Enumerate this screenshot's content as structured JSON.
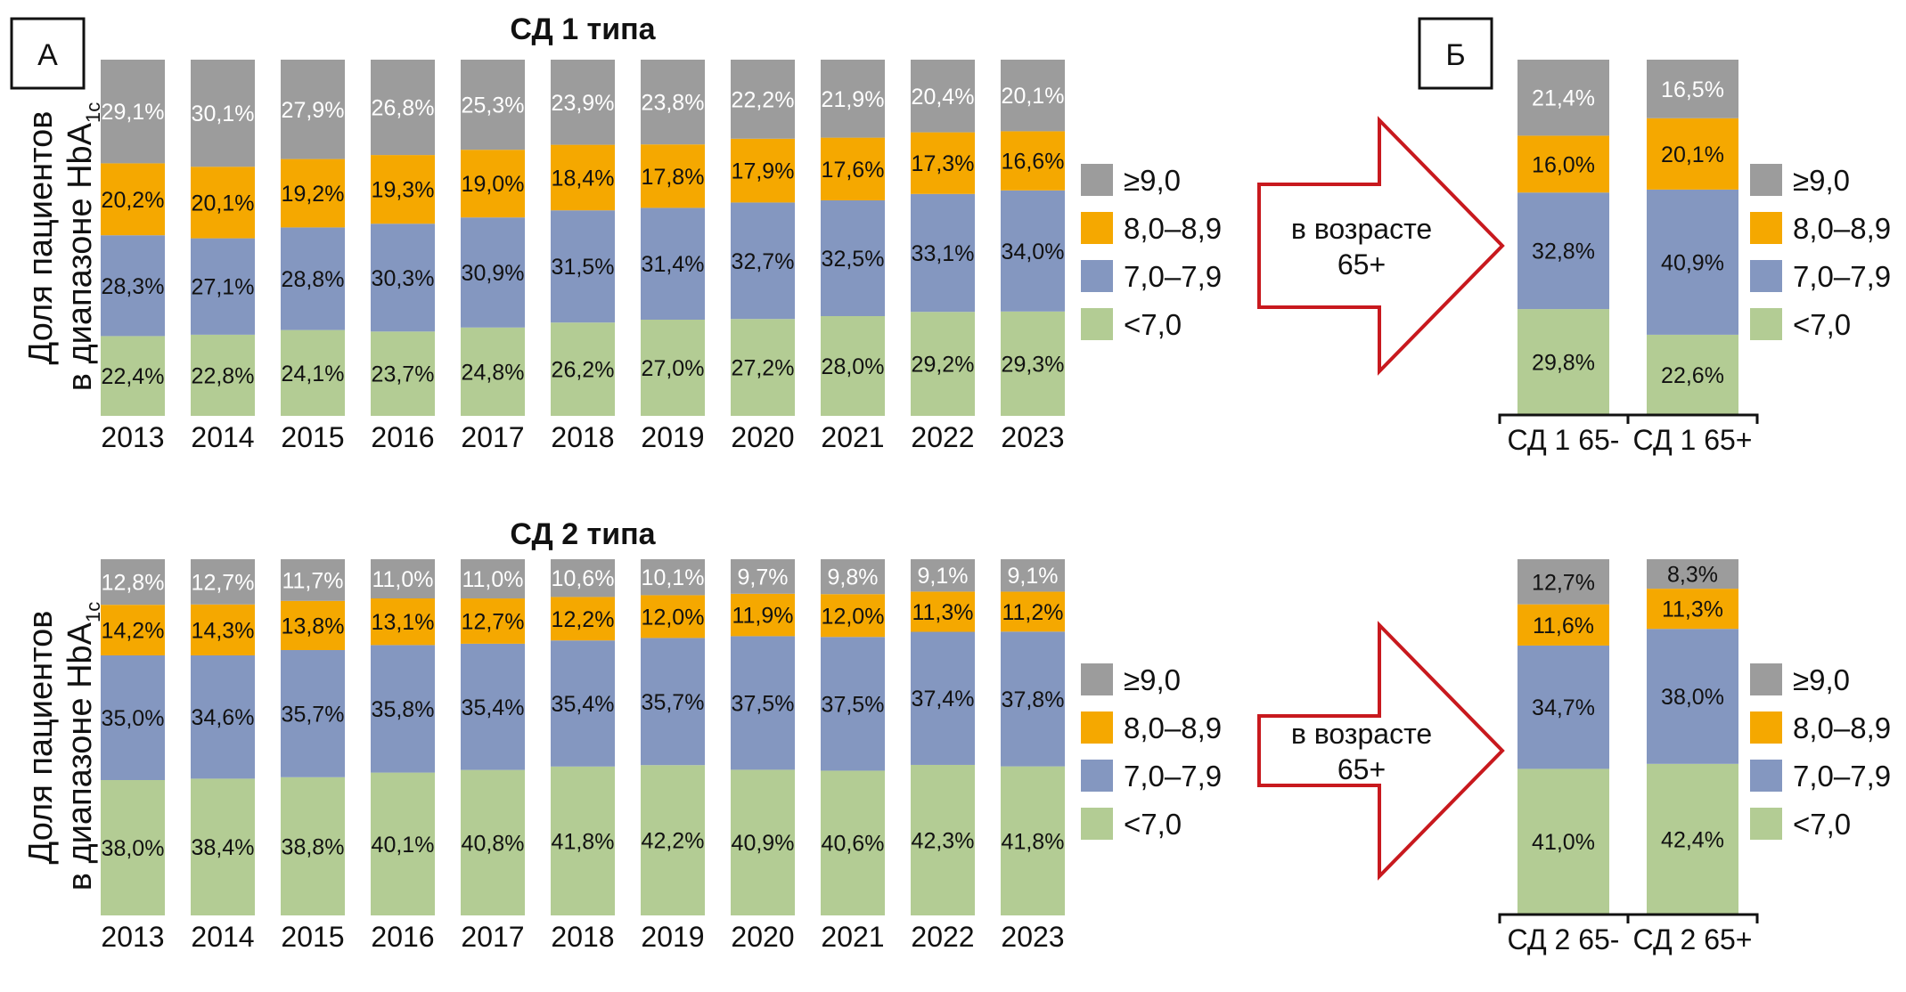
{
  "figure": {
    "panel_a_label": "А",
    "panel_b_label": "Б",
    "ylabel_line1": "Доля пациентов",
    "ylabel_line2_main": "в диапазоне HbA",
    "ylabel_line2_sub": "1c",
    "arrow_text_line1": "в возрасте",
    "arrow_text_line2": "65+",
    "colors": {
      "ge9": "#9c9c9c",
      "r8": "#f5a800",
      "r7": "#8497c0",
      "lt7": "#b3cc94",
      "arrow": "#c8191e"
    }
  },
  "chart_data": [
    {
      "id": "t1-years",
      "type": "bar",
      "stacked": true,
      "title": "СД 1 типа",
      "xlabel": "",
      "ylabel": "Доля пациентов в диапазоне HbA1c",
      "ylim": [
        0,
        100
      ],
      "grid": false,
      "legend": "right",
      "categories": [
        "2013",
        "2014",
        "2015",
        "2016",
        "2017",
        "2018",
        "2019",
        "2020",
        "2021",
        "2022",
        "2023"
      ],
      "series": [
        {
          "name": "<7,0",
          "key": "lt7",
          "values": [
            22.4,
            22.8,
            24.1,
            23.7,
            24.8,
            26.2,
            27.0,
            27.2,
            28.0,
            29.2,
            29.3
          ],
          "labels": [
            "22,4%",
            "22,8%",
            "24,1%",
            "23,7%",
            "24,8%",
            "26,2%",
            "27,0%",
            "27,2%",
            "28,0%",
            "29,2%",
            "29,3%"
          ]
        },
        {
          "name": "7,0–7,9",
          "key": "r7",
          "values": [
            28.3,
            27.1,
            28.8,
            30.3,
            30.9,
            31.5,
            31.4,
            32.7,
            32.5,
            33.1,
            34.0
          ],
          "labels": [
            "28,3%",
            "27,1%",
            "28,8%",
            "30,3%",
            "30,9%",
            "31,5%",
            "31,4%",
            "32,7%",
            "32,5%",
            "33,1%",
            "34,0%"
          ]
        },
        {
          "name": "8,0–8,9",
          "key": "r8",
          "values": [
            20.2,
            20.1,
            19.2,
            19.3,
            19.0,
            18.4,
            17.8,
            17.9,
            17.6,
            17.3,
            16.6
          ],
          "labels": [
            "20,2%",
            "20,1%",
            "19,2%",
            "19,3%",
            "19,0%",
            "18,4%",
            "17,8%",
            "17,9%",
            "17,6%",
            "17,3%",
            "16,6%"
          ]
        },
        {
          "name": "≥9,0",
          "key": "ge9",
          "values": [
            29.1,
            30.1,
            27.9,
            26.8,
            25.3,
            23.9,
            23.8,
            22.2,
            21.9,
            20.4,
            20.1
          ],
          "labels": [
            "29,1%",
            "30,1%",
            "27,9%",
            "26,8%",
            "25,3%",
            "23,9%",
            "23,8%",
            "22,2%",
            "21,9%",
            "20,4%",
            "20,1%"
          ]
        }
      ],
      "legend_entries": [
        "≥9,0",
        "8,0–8,9",
        "7,0–7,9",
        "<7,0"
      ]
    },
    {
      "id": "t2-years",
      "type": "bar",
      "stacked": true,
      "title": "СД 2 типа",
      "xlabel": "",
      "ylabel": "Доля пациентов в диапазоне HbA1c",
      "ylim": [
        0,
        100
      ],
      "grid": false,
      "legend": "right",
      "categories": [
        "2013",
        "2014",
        "2015",
        "2016",
        "2017",
        "2018",
        "2019",
        "2020",
        "2021",
        "2022",
        "2023"
      ],
      "series": [
        {
          "name": "<7,0",
          "key": "lt7",
          "values": [
            38.0,
            38.4,
            38.8,
            40.1,
            40.8,
            41.8,
            42.2,
            40.9,
            40.6,
            42.3,
            41.8
          ],
          "labels": [
            "38,0%",
            "38,4%",
            "38,8%",
            "40,1%",
            "40,8%",
            "41,8%",
            "42,2%",
            "40,9%",
            "40,6%",
            "42,3%",
            "41,8%"
          ]
        },
        {
          "name": "7,0–7,9",
          "key": "r7",
          "values": [
            35.0,
            34.6,
            35.7,
            35.8,
            35.4,
            35.4,
            35.7,
            37.5,
            37.5,
            37.4,
            37.8
          ],
          "labels": [
            "35,0%",
            "34,6%",
            "35,7%",
            "35,8%",
            "35,4%",
            "35,4%",
            "35,7%",
            "37,5%",
            "37,5%",
            "37,4%",
            "37,8%"
          ]
        },
        {
          "name": "8,0–8,9",
          "key": "r8",
          "values": [
            14.2,
            14.3,
            13.8,
            13.1,
            12.7,
            12.2,
            12.0,
            11.9,
            12.0,
            11.3,
            11.2
          ],
          "labels": [
            "14,2%",
            "14,3%",
            "13,8%",
            "13,1%",
            "12,7%",
            "12,2%",
            "12,0%",
            "11,9%",
            "12,0%",
            "11,3%",
            "11,2%"
          ]
        },
        {
          "name": "≥9,0",
          "key": "ge9",
          "values": [
            12.8,
            12.7,
            11.7,
            11.0,
            11.0,
            10.6,
            10.1,
            9.7,
            9.8,
            9.1,
            9.1
          ],
          "labels": [
            "12,8%",
            "12,7%",
            "11,7%",
            "11,0%",
            "11,0%",
            "10,6%",
            "10,1%",
            "9,7%",
            "9,8%",
            "9,1%",
            "9,1%"
          ]
        }
      ],
      "legend_entries": [
        "≥9,0",
        "8,0–8,9",
        "7,0–7,9",
        "<7,0"
      ]
    },
    {
      "id": "t1-age",
      "type": "bar",
      "stacked": true,
      "title": "",
      "ylim": [
        0,
        100
      ],
      "grid": false,
      "legend": "right",
      "categories": [
        "СД 1 65-",
        "СД 1 65+"
      ],
      "series": [
        {
          "name": "<7,0",
          "key": "lt7",
          "values": [
            29.8,
            22.6
          ],
          "labels": [
            "29,8%",
            "22,6%"
          ]
        },
        {
          "name": "7,0–7,9",
          "key": "r7",
          "values": [
            32.8,
            40.9
          ],
          "labels": [
            "32,8%",
            "40,9%"
          ]
        },
        {
          "name": "8,0–8,9",
          "key": "r8",
          "values": [
            16.0,
            20.1
          ],
          "labels": [
            "16,0%",
            "20,1%"
          ]
        },
        {
          "name": "≥9,0",
          "key": "ge9",
          "values": [
            21.4,
            16.5
          ],
          "labels": [
            "21,4%",
            "16,5%"
          ]
        }
      ],
      "legend_entries": [
        "≥9,0",
        "8,0–8,9",
        "7,0–7,9",
        "<7,0"
      ]
    },
    {
      "id": "t2-age",
      "type": "bar",
      "stacked": true,
      "title": "",
      "ylim": [
        0,
        100
      ],
      "grid": false,
      "legend": "right",
      "categories": [
        "СД 2 65-",
        "СД 2 65+"
      ],
      "series": [
        {
          "name": "<7,0",
          "key": "lt7",
          "values": [
            41.0,
            42.4
          ],
          "labels": [
            "41,0%",
            "42,4%"
          ]
        },
        {
          "name": "7,0–7,9",
          "key": "r7",
          "values": [
            34.7,
            38.0
          ],
          "labels": [
            "34,7%",
            "38,0%"
          ]
        },
        {
          "name": "8,0–8,9",
          "key": "r8",
          "values": [
            11.6,
            11.3
          ],
          "labels": [
            "11,6%",
            "11,3%"
          ]
        },
        {
          "name": "≥9,0",
          "key": "ge9",
          "values": [
            12.7,
            8.3
          ],
          "labels": [
            "12,7%",
            "8,3%"
          ],
          "dark_label": true
        }
      ],
      "legend_entries": [
        "≥9,0",
        "8,0–8,9",
        "7,0–7,9",
        "<7,0"
      ]
    }
  ]
}
